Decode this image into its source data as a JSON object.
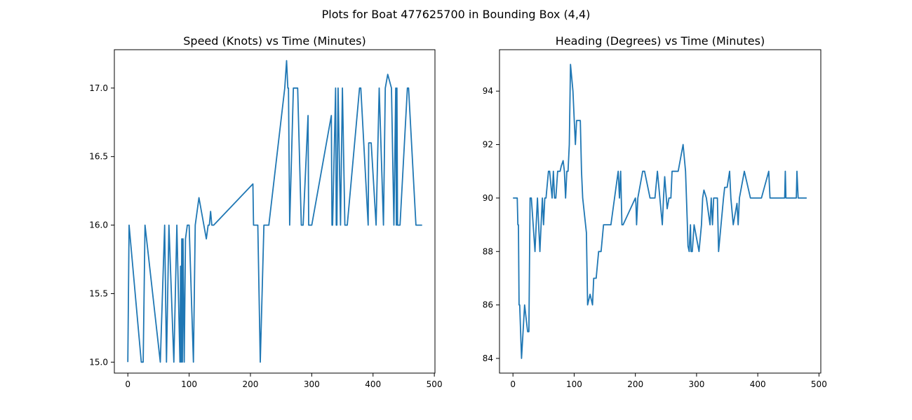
{
  "figure_title": "Plots for Boat 477625700 in Bounding Box (4,4)",
  "colors": {
    "line": "#1f77b4",
    "axes": "#000000",
    "background": "#ffffff"
  },
  "chart_data": [
    {
      "type": "line",
      "title": "Speed (Knots) vs Time (Minutes)",
      "xlabel": "",
      "ylabel": "",
      "xlim": [
        -22,
        501
      ],
      "ylim": [
        14.92,
        17.28
      ],
      "xticks": [
        0,
        100,
        200,
        300,
        400,
        500
      ],
      "xtick_labels": [
        "0",
        "100",
        "200",
        "300",
        "400",
        "500"
      ],
      "yticks": [
        15.0,
        15.5,
        16.0,
        16.5,
        17.0
      ],
      "ytick_labels": [
        "15.0",
        "15.5",
        "16.0",
        "16.5",
        "17.0"
      ],
      "grid": false,
      "series": [
        {
          "name": "speed",
          "step": true,
          "x": [
            0,
            2,
            22,
            25,
            28,
            53,
            60,
            63,
            67,
            75,
            80,
            85,
            86,
            87,
            88,
            89,
            90,
            92,
            94,
            97,
            100,
            107,
            110,
            116,
            124,
            128,
            131,
            133,
            135,
            137,
            140,
            204,
            205,
            206,
            207,
            212,
            216,
            222,
            230,
            256,
            259,
            261,
            262,
            264,
            270,
            277,
            283,
            286,
            294,
            295,
            296,
            297,
            300,
            332,
            333,
            334,
            339,
            340,
            341,
            343,
            347,
            350,
            354,
            358,
            378,
            380,
            392,
            393,
            394,
            397,
            405,
            410,
            417,
            420,
            424,
            430,
            434,
            437,
            438,
            439,
            440,
            441,
            444,
            456,
            458,
            470,
            476,
            480
          ],
          "values": [
            15.0,
            16.0,
            15.0,
            15.0,
            16.0,
            15.0,
            16.0,
            15.0,
            16.0,
            15.0,
            16.0,
            15.0,
            15.7,
            15.0,
            15.9,
            15.0,
            15.9,
            15.0,
            15.9,
            16.0,
            16.0,
            15.0,
            16.0,
            16.2,
            16.0,
            15.9,
            16.0,
            16.0,
            16.1,
            16.0,
            16.0,
            16.3,
            16.0,
            16.0,
            16.0,
            16.0,
            15.0,
            16.0,
            16.0,
            17.0,
            17.2,
            17.0,
            17.0,
            16.0,
            17.0,
            17.0,
            16.0,
            16.0,
            16.8,
            16.0,
            16.0,
            16.0,
            16.0,
            16.8,
            16.0,
            16.0,
            17.0,
            16.0,
            16.0,
            17.0,
            16.0,
            17.0,
            16.0,
            16.0,
            17.0,
            17.0,
            16.0,
            16.6,
            16.6,
            16.6,
            16.0,
            17.0,
            16.0,
            17.0,
            17.1,
            17.0,
            16.0,
            17.0,
            16.0,
            17.0,
            16.0,
            16.0,
            16.0,
            17.0,
            17.0,
            16.0,
            16.0,
            16.0
          ]
        }
      ]
    },
    {
      "type": "line",
      "title": "Heading (Degrees) vs Time (Minutes)",
      "xlabel": "",
      "ylabel": "",
      "xlim": [
        -22,
        503
      ],
      "ylim": [
        83.45,
        95.55
      ],
      "xticks": [
        0,
        100,
        200,
        300,
        400,
        500
      ],
      "xtick_labels": [
        "0",
        "100",
        "200",
        "300",
        "400",
        "500"
      ],
      "yticks": [
        84,
        86,
        88,
        90,
        92,
        94
      ],
      "ytick_labels": [
        "84",
        "86",
        "88",
        "90",
        "92",
        "94"
      ],
      "grid": false,
      "series": [
        {
          "name": "heading",
          "step": true,
          "x": [
            0,
            7,
            8,
            9,
            10,
            11,
            14,
            19,
            24,
            26,
            28,
            30,
            36,
            38,
            40,
            42,
            44,
            46,
            48,
            50,
            52,
            54,
            58,
            60,
            64,
            66,
            68,
            70,
            73,
            75,
            77,
            79,
            82,
            84,
            86,
            88,
            90,
            92,
            94,
            98,
            100,
            102,
            104,
            105,
            108,
            110,
            112,
            114,
            120,
            122,
            126,
            130,
            132,
            134,
            136,
            140,
            144,
            148,
            152,
            160,
            172,
            174,
            176,
            178,
            180,
            200,
            201,
            202,
            204,
            212,
            215,
            224,
            230,
            232,
            236,
            240,
            244,
            246,
            248,
            252,
            255,
            256,
            258,
            260,
            262,
            270,
            278,
            282,
            285,
            286,
            288,
            290,
            291,
            293,
            296,
            304,
            308,
            310,
            312,
            316,
            322,
            324,
            326,
            328,
            334,
            336,
            340,
            344,
            346,
            348,
            350,
            354,
            356,
            360,
            366,
            368,
            370,
            378,
            388,
            394,
            398,
            403,
            404,
            405,
            406,
            418,
            420,
            423,
            426,
            428,
            430,
            440,
            444,
            445,
            446,
            448,
            460,
            463,
            464,
            466,
            470,
            480
          ],
          "values": [
            90.0,
            90.0,
            89.0,
            89.0,
            86.0,
            86.0,
            84.0,
            86.0,
            85.0,
            85.0,
            90.0,
            90.0,
            88.0,
            89.0,
            90.0,
            89.0,
            88.0,
            89.0,
            90.0,
            89.0,
            90.0,
            90.0,
            91.0,
            91.0,
            90.0,
            91.0,
            90.0,
            90.0,
            91.0,
            91.0,
            91.0,
            91.2,
            91.4,
            91.0,
            90.0,
            91.0,
            91.0,
            92.0,
            95.0,
            94.0,
            93.0,
            92.0,
            92.9,
            92.9,
            92.9,
            92.9,
            91.0,
            90.0,
            88.7,
            86.0,
            86.4,
            86.0,
            87.0,
            87.0,
            87.0,
            88.0,
            88.0,
            89.0,
            89.0,
            89.0,
            91.0,
            90.0,
            91.0,
            89.0,
            89.0,
            90.0,
            89.8,
            89.0,
            90.0,
            91.0,
            91.0,
            90.0,
            90.0,
            90.0,
            91.0,
            90.0,
            89.0,
            90.0,
            90.8,
            89.6,
            90.0,
            90.0,
            90.0,
            91.0,
            91.0,
            91.0,
            92.0,
            91.0,
            89.0,
            88.2,
            88.0,
            89.0,
            88.0,
            88.0,
            89.0,
            88.0,
            89.0,
            90.0,
            90.3,
            90.0,
            89.0,
            90.0,
            89.0,
            90.0,
            90.0,
            88.0,
            89.0,
            90.0,
            90.4,
            90.4,
            90.4,
            91.0,
            90.0,
            89.0,
            89.8,
            89.0,
            90.0,
            91.0,
            90.0,
            90.0,
            90.0,
            90.0,
            90.0,
            90.0,
            90.0,
            91.0,
            90.0,
            90.0,
            90.0,
            90.0,
            90.0,
            90.0,
            90.0,
            91.0,
            90.0,
            90.0,
            90.0,
            90.0,
            91.0,
            90.0,
            90.0,
            90.0
          ]
        }
      ]
    }
  ]
}
